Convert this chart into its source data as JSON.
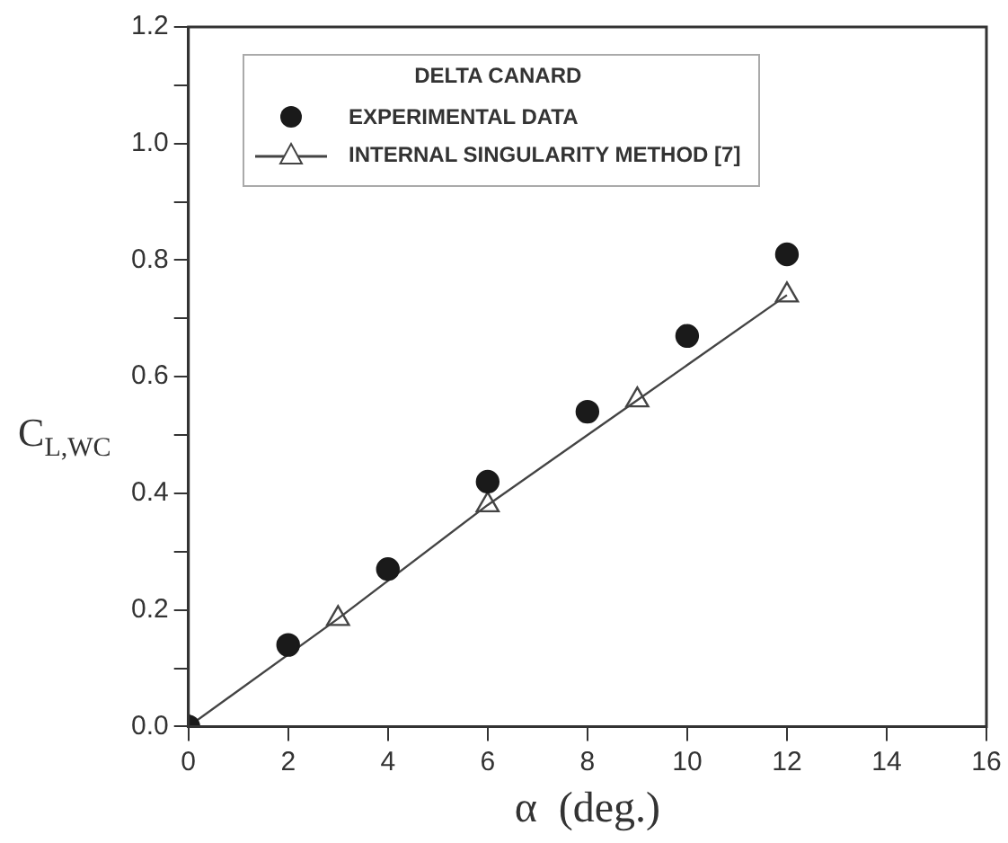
{
  "chart_data": {
    "type": "scatter",
    "xlabel": "α  (deg.)",
    "ylabel": "C$_{L,WC}$",
    "legend_title": "DELTA CANARD",
    "legend": "top left",
    "grid": false,
    "xlim": [
      0,
      16
    ],
    "xticks": [
      0,
      2,
      4,
      6,
      8,
      10,
      12,
      14,
      16
    ],
    "ylim": [
      0,
      1.2
    ],
    "yticks": [
      {
        "value": 0,
        "label": "0.0"
      },
      {
        "value": 0.1,
        "label": null
      },
      0.2,
      {
        "value": 0.3,
        "label": null
      },
      0.4,
      {
        "value": 0.5,
        "label": null
      },
      0.6,
      {
        "value": 0.7,
        "label": null
      },
      0.8,
      {
        "value": 0.9,
        "label": null
      },
      {
        "value": 1,
        "label": "1.0"
      },
      {
        "value": 1.1,
        "label": null
      },
      1.2
    ],
    "series": [
      {
        "name": "EXPERIMENTAL DATA",
        "marker": "circle",
        "color": "#1a1a1a",
        "x": [
          0,
          2,
          4,
          6,
          8,
          10,
          12
        ],
        "values": [
          0,
          0.14,
          0.27,
          0.42,
          0.54,
          0.67,
          0.81
        ]
      },
      {
        "name": "INTERNAL SINGULARITY METHOD [7]",
        "type": "line",
        "marker": "triangle",
        "line_style": "solid",
        "color": "#444444",
        "x": [
          0,
          3,
          6,
          9,
          12
        ],
        "values": [
          0,
          0.185,
          0.38,
          0.56,
          0.74
        ]
      }
    ]
  }
}
